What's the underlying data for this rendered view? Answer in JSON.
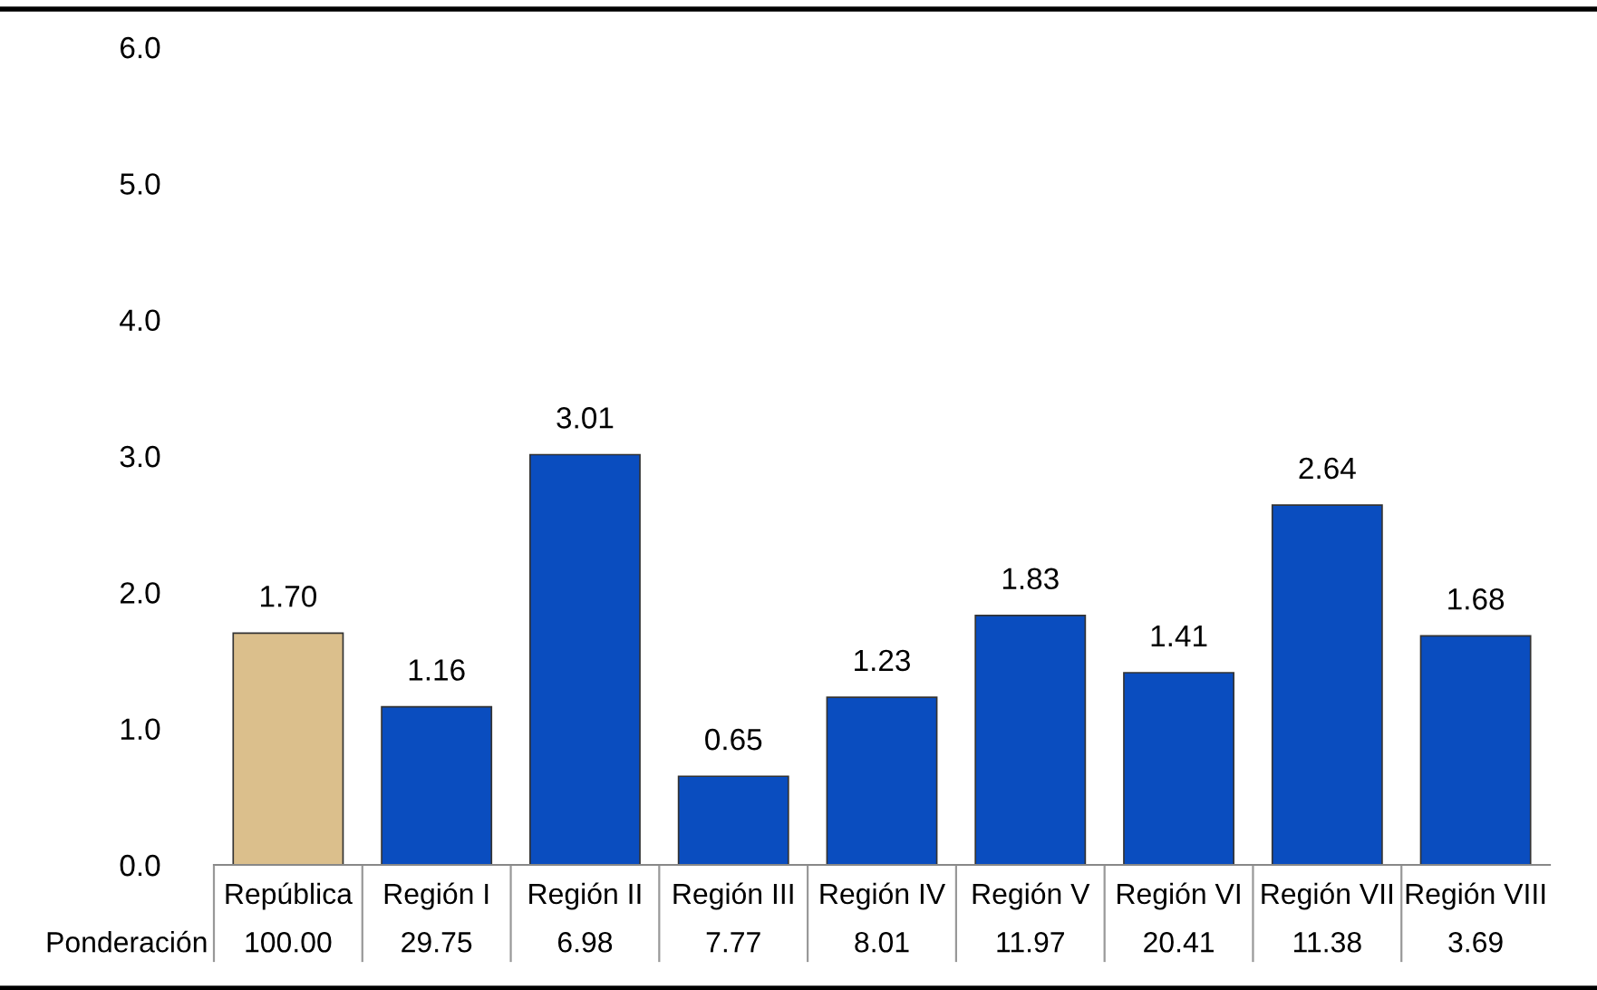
{
  "chart_data": {
    "type": "bar",
    "categories": [
      "República",
      "Región I",
      "Región II",
      "Región III",
      "Región IV",
      "Región V",
      "Región VI",
      "Región VII",
      "Región VIII"
    ],
    "values": [
      1.7,
      1.16,
      3.01,
      0.65,
      1.23,
      1.83,
      1.41,
      2.64,
      1.68
    ],
    "colors": [
      "#dbbf8c",
      "#0a4dbf",
      "#0a4dbf",
      "#0a4dbf",
      "#0a4dbf",
      "#0a4dbf",
      "#0a4dbf",
      "#0a4dbf",
      "#0a4dbf"
    ],
    "value_labels": [
      "1.70",
      "1.16",
      "3.01",
      "0.65",
      "1.23",
      "1.83",
      "1.41",
      "2.64",
      "1.68"
    ],
    "ylim": [
      0,
      6
    ],
    "yticks": [
      {
        "value": 0,
        "label": "0.0"
      },
      {
        "value": 1,
        "label": "1.0"
      },
      {
        "value": 2,
        "label": "2.0"
      },
      {
        "value": 3,
        "label": "3.0"
      },
      {
        "value": 4,
        "label": "4.0"
      },
      {
        "value": 5,
        "label": "5.0"
      },
      {
        "value": 6,
        "label": "6.0"
      }
    ],
    "annotations": [
      "Ponderación",
      "100.00",
      "29.75",
      "6.98",
      "7.77",
      "8.01",
      "11.97",
      "20.41",
      "11.38",
      "3.69"
    ],
    "grid": false,
    "legend": false
  }
}
